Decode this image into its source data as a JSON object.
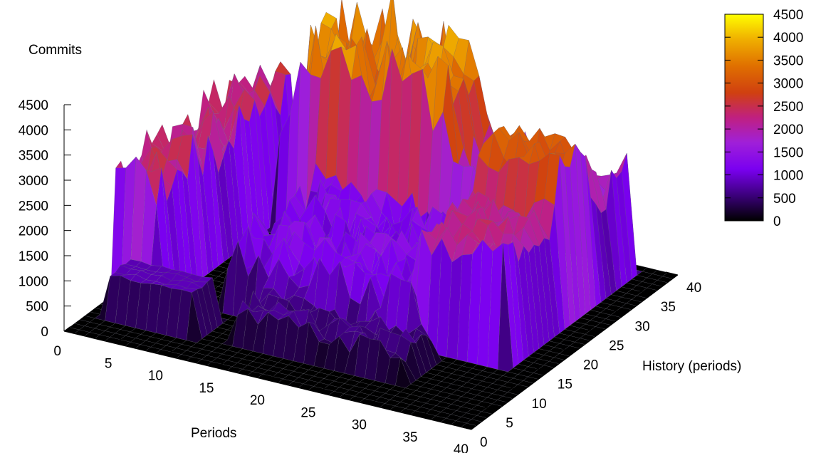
{
  "chart_data": {
    "type": "surface3d",
    "title": "",
    "zlabel": "Commits",
    "xlabel": "Periods",
    "ylabel": "History (periods)",
    "xlim": [
      0,
      40
    ],
    "ylim": [
      0,
      40
    ],
    "zlim": [
      0,
      4500
    ],
    "x_ticks": [
      "0",
      "5",
      "10",
      "15",
      "20",
      "25",
      "30",
      "35",
      "40"
    ],
    "y_ticks": [
      "0",
      "5",
      "10",
      "15",
      "20",
      "25",
      "30",
      "35",
      "40"
    ],
    "z_ticks": [
      "0",
      "500",
      "1000",
      "1500",
      "2000",
      "2500",
      "3000",
      "3500",
      "4000",
      "4500"
    ],
    "colorbar": {
      "ticks": [
        "0",
        "500",
        "1000",
        "1500",
        "2000",
        "2500",
        "3000",
        "3500",
        "4000",
        "4500"
      ],
      "range": [
        0,
        4500
      ],
      "palette": [
        "#000000",
        "#3a0078",
        "#7a00f0",
        "#a020d8",
        "#c02080",
        "#d04010",
        "#e07000",
        "#f0b000",
        "#ffff00"
      ]
    },
    "surface_profile": {
      "description_units": "commits",
      "plateau_low": {
        "x_range": [
          2,
          10
        ],
        "y_range": [
          5,
          9
        ],
        "z": 800
      },
      "ridge_back": {
        "x_range": [
          6,
          36
        ],
        "y_range": [
          30,
          38
        ],
        "z_range": [
          1500,
          4700
        ]
      },
      "peak_max": {
        "x": 14,
        "y": 36,
        "z": 4700
      },
      "side_ridge_left": {
        "x_range": [
          0,
          4
        ],
        "y_range": [
          10,
          36
        ],
        "z_range": [
          2000,
          2900
        ]
      },
      "right_block": {
        "x_range": [
          28,
          36
        ],
        "y_range": [
          14,
          30
        ],
        "z_range": [
          2000,
          3700
        ]
      }
    }
  }
}
